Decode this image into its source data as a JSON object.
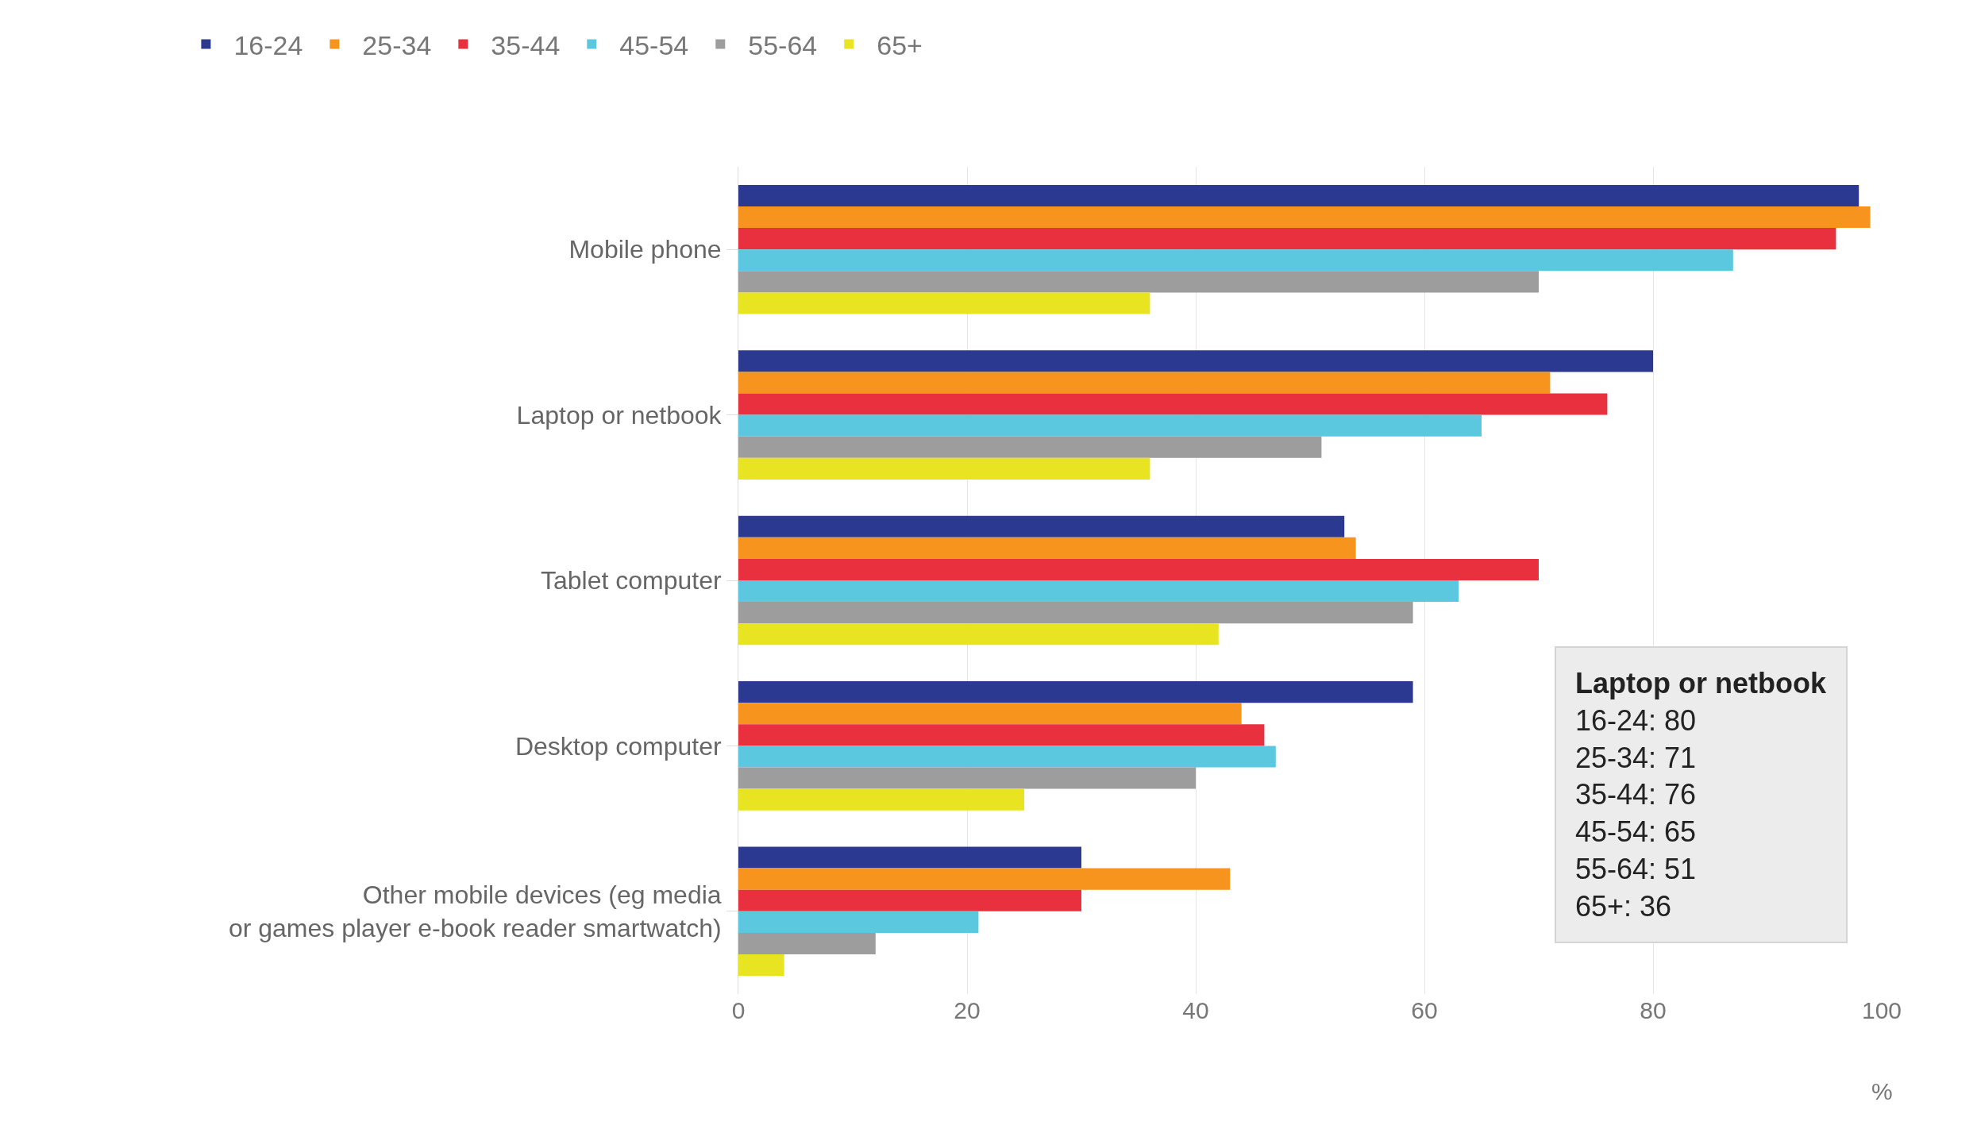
{
  "chart_data": {
    "type": "bar",
    "orientation": "horizontal",
    "xlabel": "%",
    "categories": [
      "Mobile phone",
      "Laptop or netbook",
      "Tablet computer",
      "Desktop computer",
      "Other mobile devices (eg media or games player e-book reader smartwatch)"
    ],
    "series": [
      {
        "name": "16-24",
        "color": "#2b3990",
        "values": [
          98,
          80,
          53,
          59,
          30
        ]
      },
      {
        "name": "25-34",
        "color": "#f7941d",
        "values": [
          99,
          71,
          54,
          44,
          43
        ]
      },
      {
        "name": "35-44",
        "color": "#e8303f",
        "values": [
          96,
          76,
          70,
          46,
          30
        ]
      },
      {
        "name": "45-54",
        "color": "#5bc8e0",
        "values": [
          87,
          65,
          63,
          47,
          21
        ]
      },
      {
        "name": "55-64",
        "color": "#9d9d9d",
        "values": [
          70,
          51,
          59,
          40,
          12
        ]
      },
      {
        "name": "65+",
        "color": "#e8e421",
        "values": [
          36,
          36,
          42,
          25,
          4
        ]
      }
    ],
    "xlim": [
      0,
      100
    ],
    "xticks": [
      0,
      20,
      40,
      60,
      80,
      100
    ],
    "grid": "x",
    "legend": "top left",
    "annotations": [
      "Laptop or netbook",
      "16-24: 80",
      "25-34: 71",
      "35-44: 76",
      "45-54: 65",
      "55-64: 51",
      "65+: 36"
    ]
  }
}
